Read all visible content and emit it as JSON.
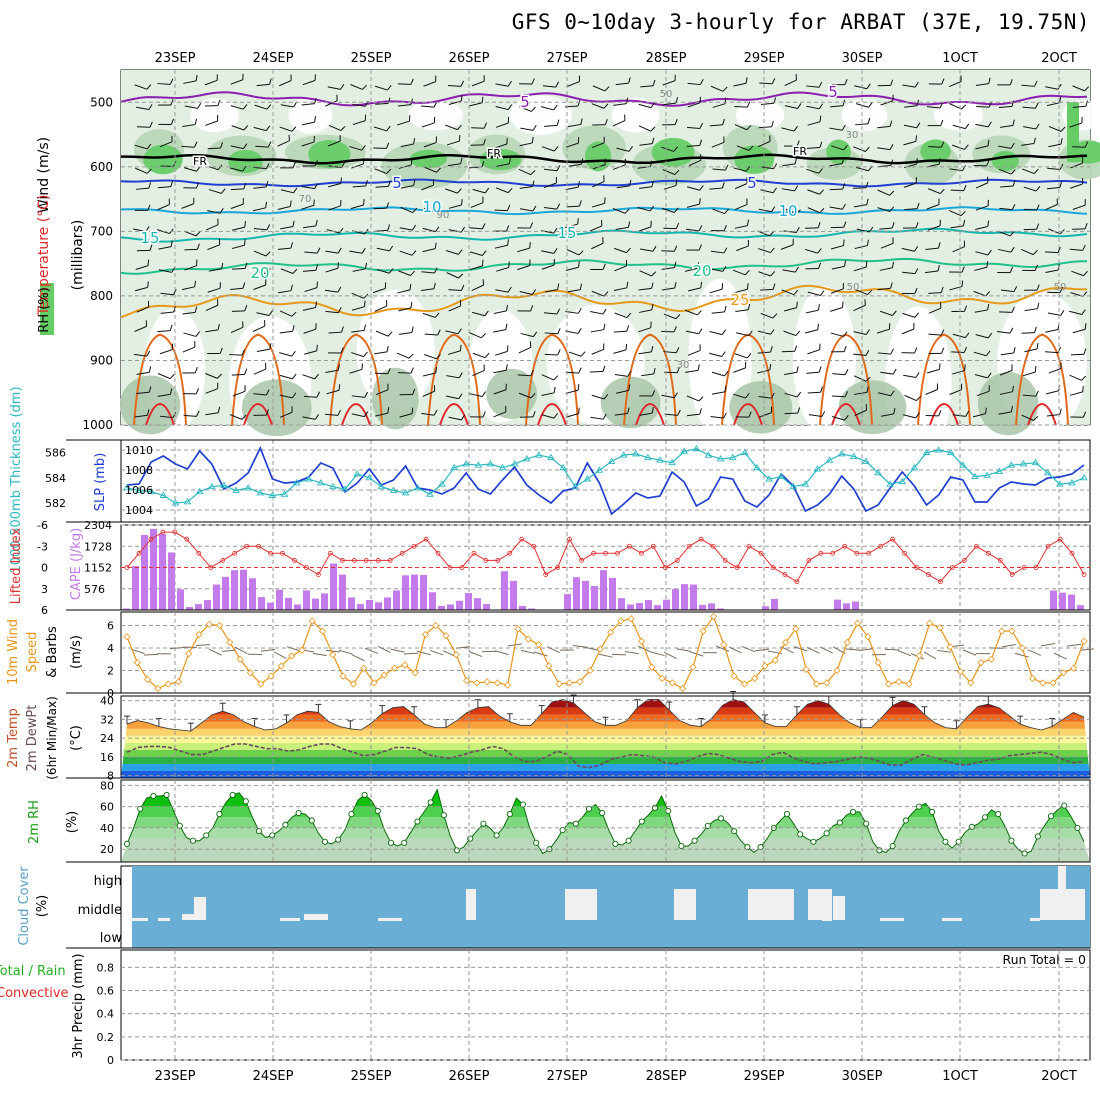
{
  "title": "GFS 0~10day 3-hourly for ARBAT (37E, 19.75N)",
  "dates": [
    "23SEP",
    "24SEP",
    "25SEP",
    "26SEP",
    "27SEP",
    "28SEP",
    "29SEP",
    "30SEP",
    "1OCT",
    "2OCT"
  ],
  "colors": {
    "rh_green": "#66cc66",
    "rh_light": "#e3efe3",
    "temp_purple": "#8a1fb0",
    "temp_blue": "#1f40d0",
    "temp_cyan": "#1aa7d8",
    "temp_teal": "#16b6b0",
    "temp_green": "#22c08a",
    "temp_orange": "#e59a1c",
    "temp_red": "#e02a2a",
    "slp": "#1f3fd0",
    "thick": "#2bb8c0",
    "li": "#e03030",
    "cape": "#c27be8",
    "wind": "#e8961c",
    "cloud": "#6aaed6"
  },
  "chart_data": [
    {
      "type": "area",
      "panel": "cross-section",
      "ylabel_wind": "Wind (m/s)",
      "ylabel_temp": "Temperature (°C)",
      "ylabel_rh": "RH (%)",
      "ylabel_axis": "(millibars)",
      "yticks": [
        "500",
        "600",
        "700",
        "800",
        "900",
        "1000"
      ],
      "ylim": [
        1000,
        450
      ],
      "isotherm_labels": [
        "5",
        "5",
        "FR",
        "FR",
        "FR",
        "5",
        "5",
        "10",
        "10",
        "15",
        "15",
        "20",
        "20",
        "25"
      ],
      "rh_labels": [
        "50",
        "30",
        "90",
        "70",
        "50",
        "30",
        "50"
      ]
    },
    {
      "type": "line",
      "panel": "slp-thickness",
      "ylabel_left": "1000-500mb Thickness (dm)",
      "ylabel_right": "SLP (mb)",
      "yticks_left": [
        "586",
        "584",
        "582"
      ],
      "yticks_right": [
        "1010",
        "1008",
        "1006",
        "1004"
      ],
      "ylim_left": [
        580.5,
        587
      ],
      "ylim_right": [
        1002.8,
        1011
      ],
      "series": [
        {
          "name": "SLP (mb)",
          "values": [
            1006.5,
            1006.6,
            1008.8,
            1009.4,
            1008.6,
            1008.1,
            1009.9,
            1008.6,
            1006.1,
            1006.7,
            1007.7,
            1010.2,
            1007.1,
            1006.7,
            1006.8,
            1007.3,
            1008.7,
            1008.2,
            1005.8,
            1006.7,
            1008.1,
            1006.5,
            1007.0,
            1008.4,
            1006.2,
            1006.0,
            1005.6,
            1006.2,
            1007.7,
            1006.1,
            1005.6,
            1007.0,
            1008.3,
            1006.5,
            1005.5,
            1004.7,
            1005.9,
            1006.2,
            1008.7,
            1006.7,
            1003.6,
            1004.6,
            1005.7,
            1005.2,
            1005.4,
            1007.8,
            1006.8,
            1004.4,
            1005.1,
            1007.3,
            1007.1,
            1004.9,
            1004.3,
            1005.5,
            1007.6,
            1006.4,
            1003.9,
            1004.5,
            1005.6,
            1007.4,
            1006.1,
            1003.9,
            1004.5,
            1006.2,
            1007.8,
            1006.4,
            1004.5,
            1005.5,
            1007.3,
            1007.0,
            1004.8,
            1004.8,
            1006.2,
            1006.8,
            1006.6,
            1006.5,
            1007.2,
            1007.3,
            1007.6,
            1008.5
          ]
        },
        {
          "name": "1000-500mb Thickness (dm)",
          "values": [
            583.2,
            583.0,
            582.9,
            582.6,
            582.0,
            582.1,
            582.9,
            583.3,
            583.4,
            583.0,
            583.2,
            582.8,
            582.6,
            582.7,
            583.6,
            583.9,
            583.6,
            583.3,
            583.1,
            584.3,
            584.0,
            583.3,
            583.0,
            582.8,
            583.2,
            582.7,
            583.5,
            584.8,
            585.1,
            585.0,
            585.1,
            584.8,
            585.1,
            585.5,
            585.8,
            585.6,
            584.8,
            583.3,
            583.9,
            584.6,
            585.3,
            585.8,
            585.9,
            585.6,
            585.4,
            585.2,
            586.1,
            586.3,
            585.8,
            585.5,
            585.6,
            586.0,
            584.8,
            583.9,
            584.1,
            583.3,
            583.5,
            584.7,
            585.4,
            585.9,
            585.7,
            585.3,
            584.4,
            583.5,
            583.7,
            584.8,
            586.0,
            586.2,
            586.0,
            585.0,
            584.1,
            584.2,
            584.5,
            585.0,
            585.1,
            585.2,
            584.4,
            583.5,
            583.6,
            584.0
          ]
        }
      ]
    },
    {
      "type": "bar",
      "panel": "cape-li",
      "ylabel_left": "Lifted Index",
      "ylabel_right": "CAPE (J/kg)",
      "yticks_left": [
        "-6",
        "-3",
        "0",
        "3",
        "6"
      ],
      "yticks_right": [
        "2304",
        "1728",
        "1152",
        "576"
      ],
      "ylim_left": [
        -6,
        6
      ],
      "ylim_right": [
        0,
        2304
      ],
      "series": [
        {
          "name": "CAPE (J/kg)",
          "values": [
            40,
            1190,
            2035,
            2200,
            2060,
            1560,
            560,
            80,
            160,
            270,
            690,
            900,
            1080,
            1090,
            860,
            350,
            200,
            550,
            330,
            150,
            530,
            310,
            450,
            1260,
            960,
            340,
            160,
            270,
            210,
            340,
            530,
            940,
            960,
            950,
            480,
            110,
            150,
            250,
            460,
            320,
            160,
            0,
            1050,
            790,
            110,
            40,
            0,
            0,
            0,
            430,
            890,
            790,
            650,
            1080,
            870,
            320,
            150,
            190,
            270,
            130,
            280,
            570,
            700,
            690,
            140,
            180,
            40,
            0,
            0,
            0,
            0,
            100,
            300,
            0,
            0,
            0,
            0,
            0,
            0,
            280,
            180,
            230,
            0,
            0,
            0,
            0,
            0,
            0,
            0,
            0,
            0,
            0,
            0,
            0,
            0,
            0,
            0,
            0,
            0,
            0,
            0,
            0,
            0,
            530,
            470,
            420,
            130
          ]
        },
        {
          "name": "Lifted Index",
          "values": [
            0,
            -2,
            -4,
            -5,
            -5,
            -4,
            -2,
            0,
            -1,
            -2,
            -3,
            -3,
            -2,
            -2,
            -1,
            0,
            1,
            -2,
            -1,
            -1,
            -1,
            -1,
            -1,
            -2,
            -3,
            -4,
            -2,
            0,
            0,
            -2,
            -1,
            -1,
            -2,
            -4,
            -3,
            1,
            0,
            -4,
            -1,
            -2,
            -2,
            -2,
            -3,
            -2,
            -3,
            0,
            -1,
            -3,
            -4,
            -3,
            -1,
            0,
            -3,
            -2,
            0,
            1,
            2,
            -1,
            -2,
            -2,
            -3,
            -2,
            -2,
            -3,
            -4,
            -2,
            0,
            1,
            2,
            0,
            -1,
            -3,
            -2,
            -1,
            1,
            0,
            0,
            -3,
            -4,
            -2,
            1
          ]
        }
      ]
    },
    {
      "type": "line",
      "panel": "wind10m",
      "ylabel": "10m Wind Speed & Barbs (m/s)",
      "yticks": [
        "6",
        "4",
        "2",
        "0"
      ],
      "ylim": [
        0,
        7.2
      ],
      "series": [
        {
          "name": "10m Wind Speed (m/s)",
          "values": [
            5.0,
            2.7,
            1.2,
            0.4,
            0.8,
            1.0,
            3.5,
            5.2,
            6.1,
            6.0,
            4.5,
            3.0,
            1.8,
            0.8,
            1.5,
            2.4,
            3.3,
            3.8,
            6.4,
            5.5,
            3.4,
            1.5,
            0.8,
            2.2,
            0.9,
            1.6,
            2.2,
            2.5,
            1.8,
            5.2,
            6.0,
            5.1,
            3.4,
            1.1,
            0.9,
            1.0,
            0.9,
            0.7,
            5.7,
            4.8,
            4.3,
            2.4,
            0.8,
            0.9,
            1.0,
            2.0,
            3.9,
            5.4,
            6.4,
            6.6,
            4.6,
            2.3,
            1.3,
            0.9,
            0.4,
            2.3,
            5.5,
            6.8,
            4.3,
            1.5,
            0.8,
            1.3,
            2.4,
            2.9,
            4.5,
            5.7,
            2.1,
            0.8,
            0.9,
            2.0,
            4.5,
            6.2,
            5.0,
            2.7,
            0.8,
            1.0,
            0.8,
            3.3,
            6.2,
            5.8,
            4.1,
            1.9,
            0.9,
            2.7,
            3.0,
            5.5,
            5.5,
            4.0,
            1.3,
            0.9,
            0.9,
            1.8,
            2.2,
            4.6
          ]
        }
      ]
    },
    {
      "type": "area",
      "panel": "temp2m",
      "ylabel": "2m Temp 2m DewPt (6hr Min/Max) (°C)",
      "yticks": [
        "40",
        "32",
        "24",
        "16",
        "8"
      ],
      "ylim": [
        7,
        42
      ],
      "series": [
        {
          "name": "2m Temp",
          "values": [
            30,
            31.5,
            30.5,
            29,
            28,
            27.5,
            27,
            30.5,
            34,
            35.5,
            34,
            31,
            29,
            27.5,
            28,
            30.5,
            34,
            35.5,
            35,
            31,
            29,
            28,
            27.5,
            30.5,
            34.5,
            37,
            37.5,
            34,
            30,
            28.5,
            28.5,
            31.5,
            35,
            37,
            37.5,
            33.5,
            31,
            29.5,
            29.5,
            34.5,
            39.5,
            40.5,
            39,
            35,
            31,
            29.5,
            29.5,
            31.5,
            37,
            40.5,
            40.5,
            36,
            31.5,
            29.5,
            29,
            32.5,
            38,
            40.5,
            39.5,
            35,
            30.5,
            29,
            29,
            34,
            38.5,
            40,
            38.5,
            34,
            30.5,
            28.5,
            28.5,
            33,
            38,
            40,
            38.5,
            34,
            30.5,
            28.5,
            28,
            33,
            37.5,
            38.5,
            37,
            33.5,
            30,
            28.5,
            27.5,
            29,
            32,
            35,
            33
          ]
        },
        {
          "name": "2m DewPt",
          "values": [
            18,
            20,
            20.5,
            20.5,
            20,
            18.5,
            17,
            17,
            18.5,
            20,
            21.5,
            21.5,
            20.5,
            19.5,
            19.5,
            18.5,
            19,
            20.5,
            21.5,
            21.5,
            19.5,
            18,
            16.5,
            17,
            18.5,
            20,
            20,
            19.5,
            17,
            16,
            15.5,
            16.5,
            18,
            19,
            20.5,
            19.5,
            16,
            14,
            14,
            16,
            18.5,
            17,
            12,
            11.5,
            12.5,
            15,
            16,
            17,
            16.5,
            16,
            13.5,
            13,
            14,
            16,
            17.5,
            17,
            15.5,
            14,
            13.5,
            14,
            17,
            18,
            15.5,
            14,
            13,
            13.5,
            14,
            15,
            16,
            15.5,
            14,
            12.5,
            12.5,
            15,
            17,
            16,
            14.5,
            13,
            12.5,
            13.5,
            14.5,
            15,
            16.5,
            17,
            17.5,
            18,
            17,
            15,
            13.5,
            14
          ]
        }
      ]
    },
    {
      "type": "area",
      "panel": "rh2m",
      "ylabel": "2m RH (%)",
      "yticks": [
        "80",
        "60",
        "40",
        "20"
      ],
      "ylim": [
        8,
        85
      ],
      "series": [
        {
          "name": "2m RH (%)",
          "values": [
            25,
            40,
            58,
            68,
            70,
            70,
            71,
            57,
            42,
            31,
            28,
            28,
            33,
            40,
            53,
            64,
            71,
            73,
            65,
            50,
            37,
            31,
            33,
            37,
            43,
            50,
            54,
            53,
            47,
            35,
            27,
            25,
            29,
            38,
            53,
            66,
            71,
            66,
            56,
            38,
            26,
            23,
            26,
            36,
            46,
            55,
            64,
            76,
            52,
            32,
            19,
            22,
            30,
            37,
            44,
            40,
            33,
            40,
            53,
            68,
            62,
            40,
            26,
            16,
            20,
            28,
            38,
            45,
            44,
            50,
            58,
            62,
            54,
            38,
            25,
            24,
            28,
            37,
            46,
            52,
            59,
            70,
            56,
            36,
            23,
            23,
            28,
            34,
            42,
            47,
            49,
            45,
            37,
            28,
            22,
            17,
            22,
            30,
            40,
            47,
            53,
            44,
            34,
            30,
            27,
            30,
            35,
            42,
            45,
            52,
            55,
            55,
            44,
            27,
            19,
            17,
            23,
            37,
            47,
            54,
            60,
            63,
            55,
            37,
            27,
            21,
            27,
            36,
            41,
            44,
            50,
            57,
            53,
            42,
            28,
            20,
            16,
            18,
            32,
            42,
            51,
            57,
            61,
            51,
            40,
            27
          ]
        }
      ]
    },
    {
      "type": "bar",
      "panel": "cloud",
      "ylabel": "Cloud Cover (%)",
      "levels": [
        "high",
        "middle",
        "low"
      ]
    },
    {
      "type": "line",
      "panel": "precip",
      "ylabel": "3hr Precip (mm)",
      "legend_total": "Total / Rain",
      "legend_conv": "Convective",
      "run_total": "Run Total = 0",
      "yticks": [
        "0.8",
        "0.6",
        "0.4",
        "0.2",
        "0"
      ],
      "ylim": [
        0,
        0.95
      ],
      "series": [
        {
          "name": "3hr Precip (mm)",
          "values": []
        }
      ]
    }
  ]
}
